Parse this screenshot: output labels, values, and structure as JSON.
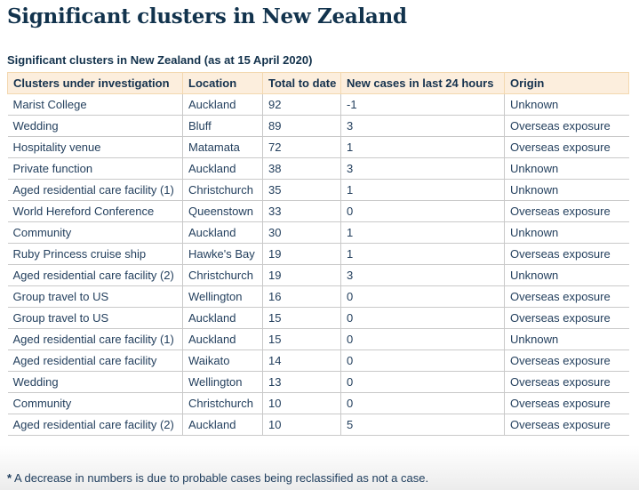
{
  "page": {
    "title": "Significant clusters in New Zealand"
  },
  "table": {
    "caption": "Significant clusters in New Zealand (as at 15 April 2020)",
    "columns": [
      "Clusters under investigation",
      "Location",
      "Total to date",
      "New cases in last 24 hours",
      "Origin"
    ],
    "rows": [
      [
        "Marist College",
        "Auckland",
        "92",
        "-1",
        "Unknown"
      ],
      [
        "Wedding",
        "Bluff",
        "89",
        "3",
        "Overseas exposure"
      ],
      [
        "Hospitality venue",
        "Matamata",
        "72",
        "1",
        "Overseas exposure"
      ],
      [
        "Private function",
        "Auckland",
        "38",
        "3",
        "Unknown"
      ],
      [
        "Aged residential care facility (1)",
        "Christchurch",
        "35",
        "1",
        "Unknown"
      ],
      [
        "World Hereford Conference",
        "Queenstown",
        "33",
        "0",
        "Overseas exposure"
      ],
      [
        "Community",
        "Auckland",
        "30",
        "1",
        "Unknown"
      ],
      [
        "Ruby Princess cruise ship",
        "Hawke's Bay",
        "19",
        "1",
        "Overseas exposure"
      ],
      [
        "Aged residential care facility (2)",
        "Christchurch",
        "19",
        "3",
        "Unknown"
      ],
      [
        "Group travel to US",
        "Wellington",
        "16",
        "0",
        "Overseas exposure"
      ],
      [
        "Group travel to US",
        "Auckland",
        "15",
        "0",
        "Overseas exposure"
      ],
      [
        "Aged residential care facility (1)",
        "Auckland",
        "15",
        "0",
        "Unknown"
      ],
      [
        "Aged residential care facility",
        "Waikato",
        "14",
        "0",
        "Overseas exposure"
      ],
      [
        "Wedding",
        "Wellington",
        "13",
        "0",
        "Overseas exposure"
      ],
      [
        "Community",
        "Christchurch",
        "10",
        "0",
        "Overseas exposure"
      ],
      [
        "Aged residential care facility (2)",
        "Auckland",
        "10",
        "5",
        "Overseas exposure"
      ]
    ]
  },
  "footnote": {
    "marker": "*",
    "text": " A decrease in numbers is due to probable cases being reclassified as not a case."
  },
  "colors": {
    "title_text": "#12334d",
    "header_background": "#fceedd",
    "header_border": "#f3d8b0",
    "row_border": "#c9c9c9",
    "body_text": "#24405e",
    "page_bottom_fade": "#ececec"
  }
}
